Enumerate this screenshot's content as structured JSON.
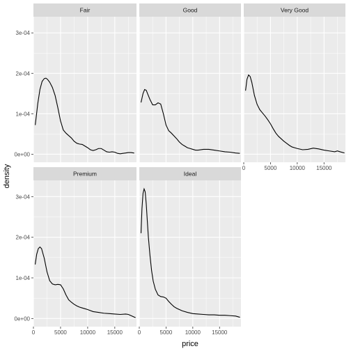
{
  "chart_data": {
    "type": "line",
    "xlabel": "price",
    "ylabel": "density",
    "xlim": [
      0,
      19000
    ],
    "ylim": [
      -2e-05,
      0.00034
    ],
    "x_ticks": [
      0,
      5000,
      10000,
      15000
    ],
    "x_tick_labels": [
      "0",
      "5000",
      "10000",
      "15000"
    ],
    "y_ticks": [
      0,
      0.0001,
      0.0002,
      0.0003
    ],
    "y_tick_labels": [
      "0e+00",
      "1e-04",
      "2e-04",
      "3e-04"
    ],
    "grid": true,
    "colors": {
      "panel": "#ebebeb",
      "strip": "#d9d9d9",
      "grid": "#ffffff",
      "line": "#000000"
    },
    "panels": [
      {
        "name": "Fair",
        "x": [
          337,
          800,
          1200,
          1600,
          2000,
          2300,
          2600,
          3000,
          3500,
          4000,
          4500,
          5000,
          5500,
          6000,
          6500,
          7000,
          7500,
          8000,
          8500,
          9000,
          9500,
          10000,
          10500,
          11000,
          11500,
          12000,
          12500,
          13000,
          13500,
          14000,
          14500,
          15000,
          15500,
          16000,
          16500,
          17000,
          17500,
          18000,
          18500,
          18574
        ],
        "y": [
          7.2e-05,
          0.000125,
          0.00016,
          0.00018,
          0.000187,
          0.000188,
          0.000185,
          0.000178,
          0.000165,
          0.000145,
          0.000115,
          8.2e-05,
          6e-05,
          5.2e-05,
          4.6e-05,
          4e-05,
          3.2e-05,
          2.7e-05,
          2.5e-05,
          2.4e-05,
          2e-05,
          1.6e-05,
          1.1e-05,
          9e-06,
          1.1e-05,
          1.4e-05,
          1.4e-05,
          1e-05,
          6e-06,
          5e-06,
          6e-06,
          5e-06,
          2e-06,
          1e-06,
          2e-06,
          3e-06,
          4e-06,
          4e-06,
          3e-06,
          3e-06
        ]
      },
      {
        "name": "Good",
        "x": [
          327,
          700,
          1000,
          1300,
          1600,
          2000,
          2500,
          3000,
          3500,
          4000,
          4500,
          5000,
          5500,
          6000,
          6500,
          7000,
          7500,
          8000,
          8500,
          9000,
          9500,
          10000,
          10500,
          11000,
          12000,
          13000,
          14000,
          15000,
          16000,
          17000,
          18000,
          18788
        ],
        "y": [
          0.000128,
          0.00015,
          0.00016,
          0.000158,
          0.000148,
          0.000135,
          0.000122,
          0.000122,
          0.000127,
          0.000124,
          0.0001,
          7.2e-05,
          5.8e-05,
          5.2e-05,
          4.5e-05,
          3.8e-05,
          3e-05,
          2.4e-05,
          2e-05,
          1.6e-05,
          1.4e-05,
          1.2e-05,
          1e-05,
          1e-05,
          1.2e-05,
          1.2e-05,
          1e-05,
          8e-06,
          6e-06,
          5e-06,
          3e-06,
          2e-06
        ]
      },
      {
        "name": "Very Good",
        "x": [
          336,
          600,
          900,
          1200,
          1500,
          2000,
          2500,
          3000,
          3500,
          4000,
          4500,
          5000,
          5500,
          6000,
          6500,
          7000,
          7500,
          8000,
          8500,
          9000,
          9500,
          10000,
          11000,
          12000,
          13000,
          14000,
          15000,
          16000,
          17000,
          17500,
          18000,
          18818
        ],
        "y": [
          0.000157,
          0.000185,
          0.000196,
          0.000192,
          0.000178,
          0.000145,
          0.000123,
          0.00011,
          0.000102,
          9.4e-05,
          8.5e-05,
          7.5e-05,
          6.3e-05,
          5.2e-05,
          4.4e-05,
          3.8e-05,
          3.2e-05,
          2.7e-05,
          2.2e-05,
          1.8e-05,
          1.6e-05,
          1.4e-05,
          1.1e-05,
          1.2e-05,
          1.5e-05,
          1.3e-05,
          1e-05,
          8e-06,
          6e-06,
          8e-06,
          6e-06,
          3e-06
        ]
      },
      {
        "name": "Premium",
        "x": [
          326,
          600,
          900,
          1200,
          1500,
          2000,
          2500,
          3000,
          3500,
          4000,
          4500,
          5000,
          5500,
          6000,
          6500,
          7000,
          7500,
          8000,
          8500,
          9000,
          9500,
          10000,
          11000,
          12000,
          13000,
          14000,
          15000,
          16000,
          17000,
          17500,
          18000,
          18823
        ],
        "y": [
          0.000133,
          0.000158,
          0.000172,
          0.000176,
          0.000172,
          0.000148,
          0.000115,
          9.3e-05,
          8.5e-05,
          8.3e-05,
          8.4e-05,
          8.3e-05,
          7.3e-05,
          5.8e-05,
          4.6e-05,
          4e-05,
          3.5e-05,
          3.1e-05,
          2.8e-05,
          2.6e-05,
          2.4e-05,
          2.2e-05,
          1.7e-05,
          1.5e-05,
          1.3e-05,
          1.2e-05,
          1.1e-05,
          1e-05,
          1.1e-05,
          1e-05,
          7e-06,
          2e-06
        ]
      },
      {
        "name": "Ideal",
        "x": [
          326,
          500,
          700,
          900,
          1100,
          1300,
          1500,
          1700,
          2000,
          2300,
          2600,
          3000,
          3500,
          4000,
          4500,
          5000,
          5500,
          6000,
          6500,
          7000,
          8000,
          9000,
          10000,
          11000,
          12000,
          13000,
          14000,
          15000,
          16000,
          17000,
          18000,
          18806
        ],
        "y": [
          0.00021,
          0.00027,
          0.000308,
          0.000319,
          0.000312,
          0.000282,
          0.00024,
          0.0002,
          0.000155,
          0.000118,
          9.2e-05,
          7.2e-05,
          5.8e-05,
          5.4e-05,
          5.3e-05,
          5e-05,
          4.2e-05,
          3.5e-05,
          2.9e-05,
          2.5e-05,
          1.9e-05,
          1.5e-05,
          1.2e-05,
          1.1e-05,
          1e-05,
          9e-06,
          9e-06,
          8e-06,
          8e-06,
          7e-06,
          6e-06,
          3e-06
        ]
      }
    ]
  }
}
